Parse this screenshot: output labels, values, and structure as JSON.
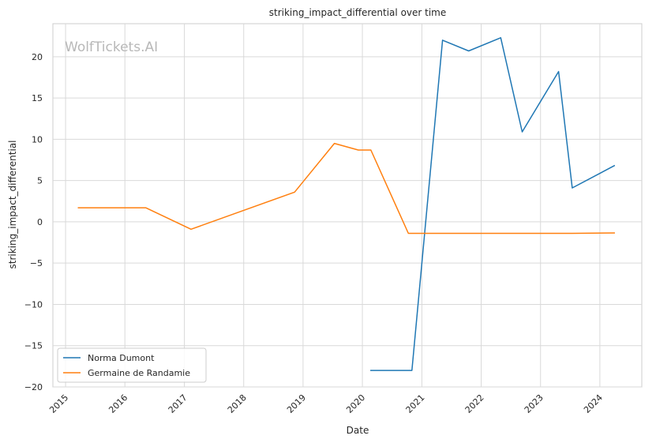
{
  "watermark": "WolfTickets.AI",
  "chart_data": {
    "type": "line",
    "title": "striking_impact_differential over time",
    "xlabel": "Date",
    "ylabel": "striking_impact_differential",
    "x_ticks": [
      "2015",
      "2016",
      "2017",
      "2018",
      "2019",
      "2020",
      "2021",
      "2022",
      "2023",
      "2024"
    ],
    "y_ticks": [
      -20,
      -15,
      -10,
      -5,
      0,
      5,
      10,
      15,
      20
    ],
    "y_tick_labels": [
      "−20",
      "−15",
      "−10",
      "−5",
      "0",
      "5",
      "10",
      "15",
      "20"
    ],
    "xlim": [
      "2014-10-15",
      "2024-09-15"
    ],
    "ylim": [
      -20,
      24
    ],
    "grid": true,
    "legend_position": "lower-left",
    "series": [
      {
        "name": "Norma Dumont",
        "color": "#1f77b4",
        "points": [
          {
            "x": "2020-02-22",
            "y": -18.0
          },
          {
            "x": "2020-11-01",
            "y": -18.0
          },
          {
            "x": "2021-05-08",
            "y": 22.0
          },
          {
            "x": "2021-10-16",
            "y": 20.7
          },
          {
            "x": "2022-05-01",
            "y": 22.3
          },
          {
            "x": "2022-09-10",
            "y": 10.9
          },
          {
            "x": "2023-04-22",
            "y": 18.2
          },
          {
            "x": "2023-07-15",
            "y": 4.1
          },
          {
            "x": "2024-03-30",
            "y": 6.8
          }
        ]
      },
      {
        "name": "Germaine de Randamie",
        "color": "#ff7f0e",
        "points": [
          {
            "x": "2015-03-21",
            "y": 1.7
          },
          {
            "x": "2016-05-08",
            "y": 1.7
          },
          {
            "x": "2017-02-11",
            "y": -0.9
          },
          {
            "x": "2018-11-10",
            "y": 3.6
          },
          {
            "x": "2019-07-13",
            "y": 9.5
          },
          {
            "x": "2019-12-07",
            "y": 8.7
          },
          {
            "x": "2020-02-22",
            "y": 8.7
          },
          {
            "x": "2020-10-10",
            "y": -1.4
          },
          {
            "x": "2023-07-15",
            "y": -1.4
          },
          {
            "x": "2024-03-30",
            "y": -1.35
          }
        ]
      }
    ]
  }
}
